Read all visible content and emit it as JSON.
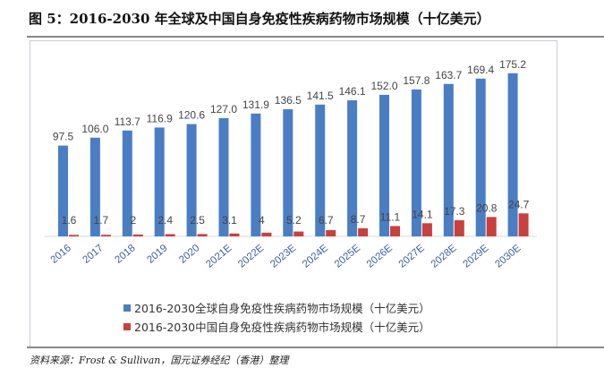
{
  "title": "图 5：2016-2030 年全球及中国自身免疫性疾病药物市场规模（十亿美元）",
  "source": "资料来源：Frost & Sullivan，国元证券经纪（香港）整理",
  "chart_data": {
    "type": "bar",
    "categories": [
      "2016",
      "2017",
      "2018",
      "2019",
      "2020",
      "2021E",
      "2022E",
      "2023E",
      "2024E",
      "2025E",
      "2026E",
      "2027E",
      "2028E",
      "2029E",
      "2030E"
    ],
    "series": [
      {
        "name": "2016-2030全球自身免疫性疾病药物市场规模（十亿美元）",
        "color": "#4a7ec4",
        "values": [
          97.5,
          106.0,
          113.7,
          116.9,
          120.6,
          127.0,
          131.9,
          136.5,
          141.5,
          146.1,
          152.0,
          157.8,
          163.7,
          169.4,
          175.2
        ],
        "labels": [
          "97.5",
          "106.0",
          "113.7",
          "116.9",
          "120.6",
          "127.0",
          "131.9",
          "136.5",
          "141.5",
          "146.1",
          "152.0",
          "157.8",
          "163.7",
          "169.4",
          "175.2"
        ]
      },
      {
        "name": "2016-2030中国自身免疫性疾病药物市场规模（十亿美元）",
        "color": "#c9403c",
        "values": [
          1.6,
          1.7,
          2,
          2.4,
          2.5,
          3.1,
          4,
          5.2,
          6.7,
          8.7,
          11.1,
          14.1,
          17.3,
          20.8,
          24.7
        ],
        "labels": [
          "1.6",
          "1.7",
          "2",
          "2.4",
          "2.5",
          "3.1",
          "4",
          "5.2",
          "6.7",
          "8.7",
          "11.1",
          "14.1",
          "17.3",
          "20.8",
          "24.7"
        ]
      }
    ],
    "ylim": [
      0,
      180
    ],
    "grid": false,
    "legend": "bottom"
  }
}
